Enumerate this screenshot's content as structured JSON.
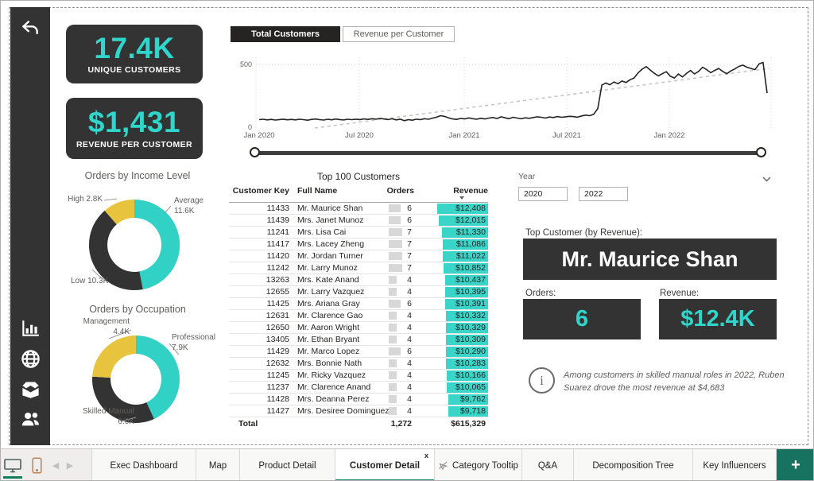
{
  "colors": {
    "accent_teal": "#2FD6CB",
    "bar_teal": "#3AD5C9",
    "slice_teal": "#31D1C6",
    "slice_dark": "#333333",
    "slice_yellow": "#E8C33D",
    "card_bg": "#333333",
    "page_green": "#0D7C66",
    "plus_green": "#17735F",
    "line": "#252423",
    "trend": "#c8c6c4"
  },
  "sidebar": {
    "back_icon": "undo-arrow-icon",
    "nav_icons": [
      "bar-chart-icon",
      "globe-icon",
      "box-icon",
      "people-icon"
    ]
  },
  "kpis": [
    {
      "value": "17.4K",
      "label": "UNIQUE CUSTOMERS"
    },
    {
      "value": "$1,431",
      "label": "REVENUE PER CUSTOMER"
    }
  ],
  "toggle": {
    "active": "Total Customers",
    "inactive": "Revenue per Customer"
  },
  "chart_data": [
    {
      "type": "line",
      "title": "Total Customers",
      "frequency": "weekly",
      "x_ticks": [
        "Jan 2020",
        "Jul 2020",
        "Jan 2021",
        "Jul 2021",
        "Jan 2022"
      ],
      "y_ticks": [
        "500",
        "0"
      ],
      "ylim": [
        0,
        560
      ],
      "grid": "dotted",
      "trendline": true,
      "values": [
        60,
        63,
        58,
        62,
        57,
        61,
        64,
        59,
        62,
        58,
        63,
        60,
        56,
        62,
        65,
        60,
        57,
        63,
        59,
        65,
        61,
        58,
        63,
        60,
        64,
        61,
        66,
        62,
        68,
        64,
        70,
        65,
        61,
        67,
        58,
        64,
        52,
        60,
        56,
        64,
        60,
        68,
        63,
        72,
        80,
        92,
        86,
        74,
        66,
        62,
        70,
        66,
        74,
        68,
        64,
        71,
        66,
        73,
        77,
        69,
        83,
        75,
        68,
        79,
        73,
        67,
        75,
        71,
        77,
        83,
        79,
        73,
        81,
        77,
        85,
        79,
        83,
        87,
        84,
        80,
        90,
        96,
        92,
        104,
        148,
        335,
        352,
        338,
        360,
        346,
        368,
        356,
        378,
        392,
        432,
        462,
        482,
        456,
        430,
        408,
        426,
        442,
        406,
        392,
        424,
        400,
        428,
        452,
        424,
        444,
        478,
        458,
        434,
        452,
        468,
        444,
        426,
        448,
        464,
        484,
        494,
        478,
        468,
        458,
        504,
        516,
        272
      ]
    },
    {
      "type": "pie",
      "title": "Orders by Income Level",
      "slices": [
        {
          "name": "Average",
          "value": 11.6,
          "value_label": "11.6K",
          "color": "#31D1C6"
        },
        {
          "name": "Low",
          "value": 10.3,
          "value_label": "10.3K",
          "color": "#333333"
        },
        {
          "name": "High",
          "value": 2.8,
          "value_label": "2.8K",
          "color": "#E8C33D"
        }
      ]
    },
    {
      "type": "pie",
      "title": "Orders by Occupation",
      "slices": [
        {
          "name": "Professional",
          "value": 7.9,
          "value_label": "7.9K",
          "color": "#31D1C6"
        },
        {
          "name": "Skilled Manual",
          "value": 6.0,
          "value_label": "6.0K",
          "color": "#333333"
        },
        {
          "name": "Management",
          "value": 4.4,
          "value_label": "4.4K",
          "color": "#E8C33D"
        }
      ]
    }
  ],
  "table": {
    "title": "Top 100 Customers",
    "columns": [
      "Customer Key",
      "Full Name",
      "Orders",
      "Revenue"
    ],
    "rows": [
      [
        "11433",
        "Mr. Maurice Shan",
        "6",
        "$12,408"
      ],
      [
        "11439",
        "Mrs. Janet Munoz",
        "6",
        "$12,015"
      ],
      [
        "11241",
        "Mrs. Lisa Cai",
        "7",
        "$11,330"
      ],
      [
        "11417",
        "Mrs. Lacey Zheng",
        "7",
        "$11,086"
      ],
      [
        "11420",
        "Mr. Jordan Turner",
        "7",
        "$11,022"
      ],
      [
        "11242",
        "Mr. Larry Munoz",
        "7",
        "$10,852"
      ],
      [
        "13263",
        "Mrs. Kate Anand",
        "4",
        "$10,437"
      ],
      [
        "12655",
        "Mr. Larry Vazquez",
        "4",
        "$10,395"
      ],
      [
        "11425",
        "Mrs. Ariana Gray",
        "6",
        "$10,391"
      ],
      [
        "12631",
        "Mr. Clarence Gao",
        "4",
        "$10,332"
      ],
      [
        "12650",
        "Mr. Aaron Wright",
        "4",
        "$10,329"
      ],
      [
        "13405",
        "Mr. Ethan Bryant",
        "4",
        "$10,309"
      ],
      [
        "11429",
        "Mr. Marco Lopez",
        "6",
        "$10,290"
      ],
      [
        "12632",
        "Mrs. Bonnie Nath",
        "4",
        "$10,283"
      ],
      [
        "11245",
        "Mr. Ricky Vazquez",
        "4",
        "$10,166"
      ],
      [
        "11237",
        "Mr. Clarence Anand",
        "4",
        "$10,065"
      ],
      [
        "11428",
        "Mrs. Deanna Perez",
        "4",
        "$9,762"
      ],
      [
        "11427",
        "Mrs. Desiree Dominguez",
        "4",
        "$9,718"
      ]
    ],
    "total": {
      "label": "Total",
      "orders": "1,272",
      "revenue": "$615,329"
    }
  },
  "slicer": {
    "label": "Year",
    "from": "2020",
    "to": "2022"
  },
  "top_customer": {
    "label": "Top Customer (by Revenue):",
    "name": "Mr. Maurice Shan",
    "orders_label": "Orders:",
    "orders": "6",
    "revenue_label": "Revenue:",
    "revenue": "$12.4K"
  },
  "insight": {
    "text": "Among customers in skilled manual roles in 2022, Ruben Suarez drove the most revenue at $4,683",
    "icon": "info-icon"
  },
  "bottom_bar": {
    "view_icons": [
      "desktop-view-icon",
      "phone-view-icon",
      "prev-page-icon",
      "next-page-icon"
    ],
    "pages": [
      {
        "label": "Exec Dashboard"
      },
      {
        "label": "Map"
      },
      {
        "label": "Product Detail"
      },
      {
        "label": "Customer Detail",
        "active": true,
        "close_label": "x"
      },
      {
        "label": "Category Tooltip",
        "hidden_icon": true
      },
      {
        "label": "Q&A"
      },
      {
        "label": "Decomposition Tree"
      },
      {
        "label": "Key Influencers"
      }
    ],
    "new_page_label": "+"
  }
}
